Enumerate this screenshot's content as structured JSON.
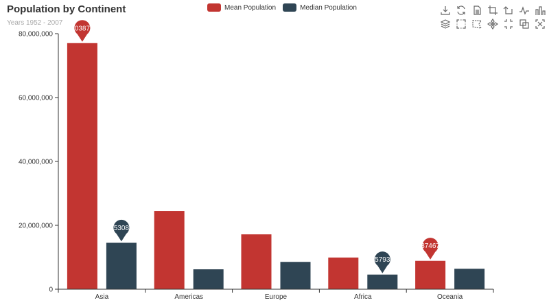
{
  "title": "Population by Continent",
  "subtitle": "Years 1952 - 2007",
  "toolbox": [
    {
      "name": "download-icon"
    },
    {
      "name": "refresh-icon"
    },
    {
      "name": "data-view-icon"
    },
    {
      "name": "zoom-icon"
    },
    {
      "name": "zoom-reset-icon"
    },
    {
      "name": "line-chart-icon"
    },
    {
      "name": "bar-chart-icon"
    },
    {
      "name": "stack-icon"
    },
    {
      "name": "rect-select-icon"
    },
    {
      "name": "polygon-select-icon"
    },
    {
      "name": "keep-selection-icon"
    },
    {
      "name": "clear-selection-icon"
    },
    {
      "name": "copy-icon"
    },
    {
      "name": "close-icon"
    }
  ],
  "chart_data": {
    "type": "bar",
    "categories": [
      "Asia",
      "Americas",
      "Europe",
      "Africa",
      "Oceania"
    ],
    "series": [
      {
        "name": "Mean Population",
        "color": "#c23531",
        "values": [
          77038722,
          24504795,
          17169765,
          9916003,
          8874672
        ],
        "marks": [
          {
            "category": "Asia",
            "label": "0387"
          },
          {
            "category": "Oceania",
            "label": "37467"
          }
        ]
      },
      {
        "name": "Median Population",
        "color": "#2f4554",
        "values": [
          14530830,
          6227510,
          8551125,
          4579311,
          6403492
        ],
        "marks": [
          {
            "category": "Asia",
            "label": "5308"
          },
          {
            "category": "Africa",
            "label": "5793"
          }
        ]
      }
    ],
    "ylim": [
      0,
      80000000
    ],
    "yticks": [
      "0",
      "20,000,000",
      "40,000,000",
      "60,000,000",
      "80,000,000"
    ],
    "legend": "top-center",
    "grid": false
  }
}
